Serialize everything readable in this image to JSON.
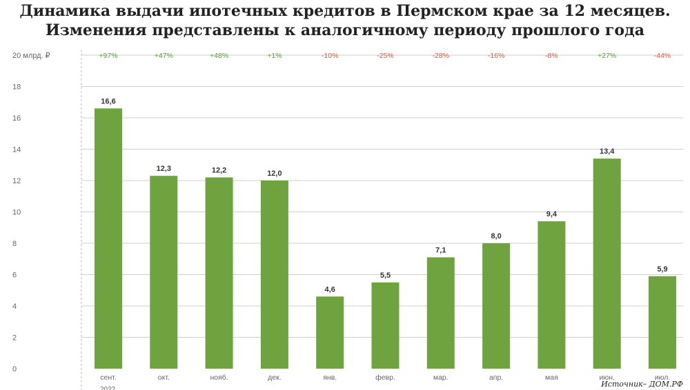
{
  "header": {
    "title_line1": "Динамика выдачи ипотечных кредитов в Пермском крае за 12 месяцев.",
    "title_line2": "Изменения представлены к аналогичному периоду прошлого года"
  },
  "source": "Источник– ДОМ.РФ",
  "colors": {
    "bar": "#6fa33f",
    "positive": "#5a9e2f",
    "negative": "#e05a3c",
    "grid": "#cfcfcf",
    "axis_text": "#666666"
  },
  "chart_data": {
    "type": "bar",
    "ylabel": "20 млрд. ₽",
    "ylim": [
      0,
      20
    ],
    "yticks": [
      0,
      2,
      4,
      6,
      8,
      10,
      12,
      14,
      16,
      18
    ],
    "categories": [
      "сент.",
      "окт.",
      "нояб.",
      "дек.",
      "янв.",
      "февр.",
      "мар.",
      "апр.",
      "мая",
      "июн.",
      "июл."
    ],
    "values": [
      16.6,
      12.3,
      12.2,
      12.0,
      4.6,
      5.5,
      7.1,
      8.0,
      9.4,
      13.4,
      5.9
    ],
    "value_labels": [
      "16,6",
      "12,3",
      "12,2",
      "12,0",
      "4,6",
      "5,5",
      "7,1",
      "8,0",
      "9,4",
      "13,4",
      "5,9"
    ],
    "changes": [
      "+97%",
      "+47%",
      "+48%",
      "+1%",
      "-10%",
      "-25%",
      "-28%",
      "-16%",
      "-8%",
      "+27%",
      "-44%"
    ],
    "year_label": "2022",
    "grid": true
  }
}
